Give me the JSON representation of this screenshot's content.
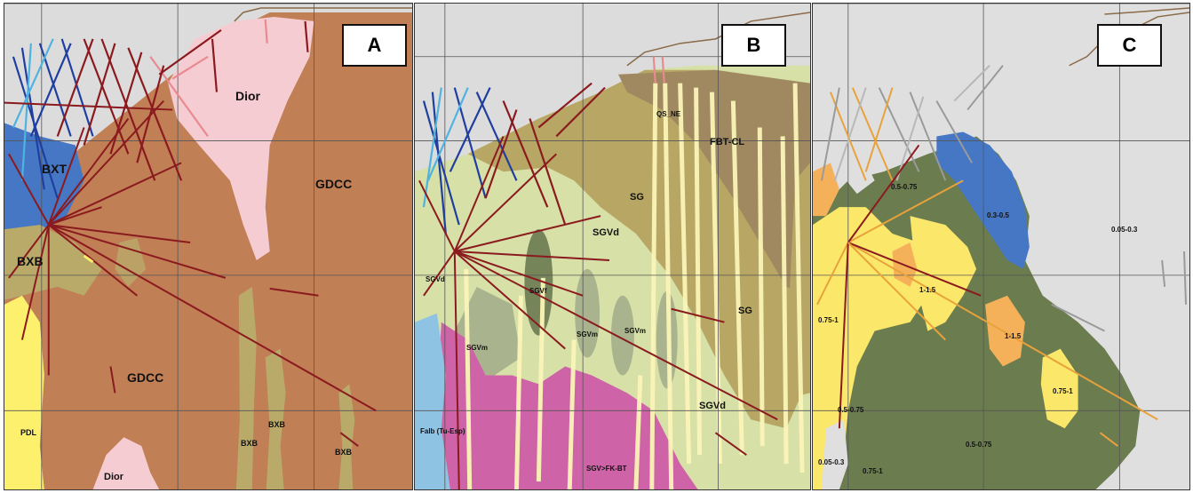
{
  "panels": [
    {
      "letter": "A",
      "labels": {
        "dior_top": "Dior",
        "gdcc_right": "GDCC",
        "bxt": "BXT",
        "bxb_left": "BXB",
        "gdcc_center": "GDCC",
        "pdl": "PDL",
        "bxb_1": "BXB",
        "bxb_2": "BXB",
        "bxb_3": "BXB",
        "dior_bottom": "Dior"
      }
    },
    {
      "letter": "B",
      "labels": {
        "qs_ne": "QS_NE",
        "fbt_cl": "FBT-CL",
        "sg_upper": "SG",
        "sgvd_center": "SGVd",
        "sgvd_left": "SGVd",
        "sgvf": "SGVf",
        "sgvm_1": "SGVm",
        "sgvm_2": "SGVm",
        "sgvm_3": "SGVm",
        "sg_lower": "SG",
        "sgvd_lower": "SGVd",
        "falb": "Falb (Tu-Esp)",
        "sgv_fk": "SGV>FK-BT"
      }
    },
    {
      "letter": "C",
      "labels": {
        "r05_075_top": "0.5-0.75",
        "r03_05": "0.3-0.5",
        "r005_03_right": "0.05-0.3",
        "r1_15_a": "1-1.5",
        "r075_1_left": "0.75-1",
        "r1_15_b": "1-1.5",
        "r075_1_right": "0.75-1",
        "r05_075_left": "0.5-0.75",
        "r05_075_bottom": "0.5-0.75",
        "r005_03_bottom": "0.05-0.3",
        "r075_1_bottom": "0.75-1"
      }
    }
  ],
  "colors": {
    "gdcc": "#c17f55",
    "dior": "#f6ccd3",
    "bxt": "#4577c4",
    "bxb": "#b9aa6a",
    "pdl": "#fdf06d",
    "sg": "#b7a664",
    "fbt_cl": "#a08961",
    "sgvd": "#d6e0a7",
    "sgvm": "#a9b38d",
    "sgv_fk": "#cf63a7",
    "falb": "#8fc3e3",
    "grid_bg": "#dcdcdc",
    "low_grade": "#dfdfe0",
    "mid_grade": "#6b7c4f",
    "high_grade": "#fbe76a",
    "top_grade": "#f5b15a",
    "drillhole": "#8b1a1f"
  }
}
